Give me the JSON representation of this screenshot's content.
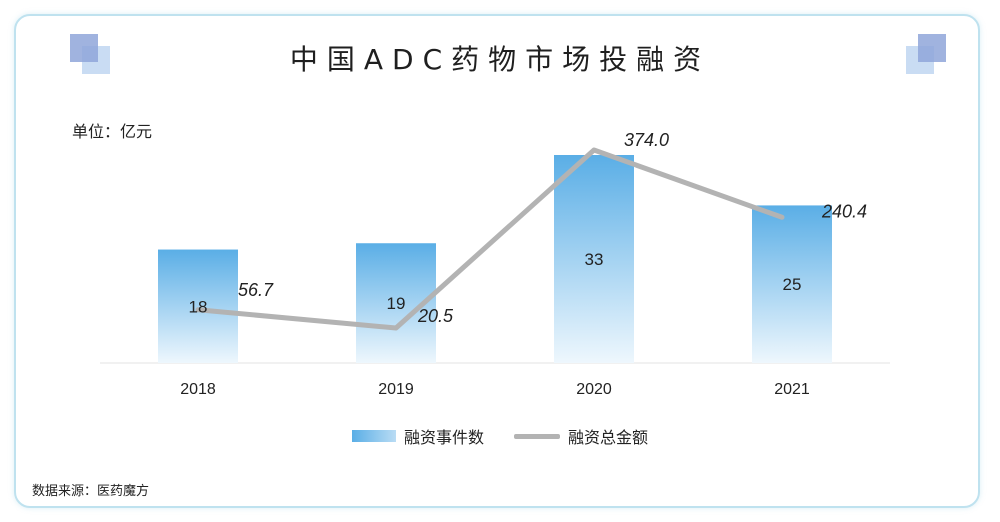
{
  "title": "中国ADC药物市场投融资",
  "unit_label": "单位：亿元",
  "source_label": "数据来源：医药魔方",
  "colors": {
    "bar_top": "#5aaee6",
    "bar_bottom": "#eef7fd",
    "line": "#b3b3b3",
    "deco_dark": "#8fa6d9",
    "deco_light": "#c9dcf3"
  },
  "chart_data": {
    "type": "bar",
    "categories": [
      "2018",
      "2019",
      "2020",
      "2021"
    ],
    "series": [
      {
        "name": "融资事件数",
        "type": "bar",
        "values": [
          18,
          19,
          33,
          25
        ]
      },
      {
        "name": "融资总金额",
        "type": "line",
        "values": [
          56.7,
          20.5,
          374.0,
          240.4
        ]
      }
    ],
    "data_labels": {
      "bar": [
        "18",
        "19",
        "33",
        "25"
      ],
      "line": [
        "56.7",
        "20.5",
        "374.0",
        "240.4"
      ]
    },
    "legend": [
      "融资事件数",
      "融资总金额"
    ],
    "legend_position": "bottom",
    "grid": false
  }
}
